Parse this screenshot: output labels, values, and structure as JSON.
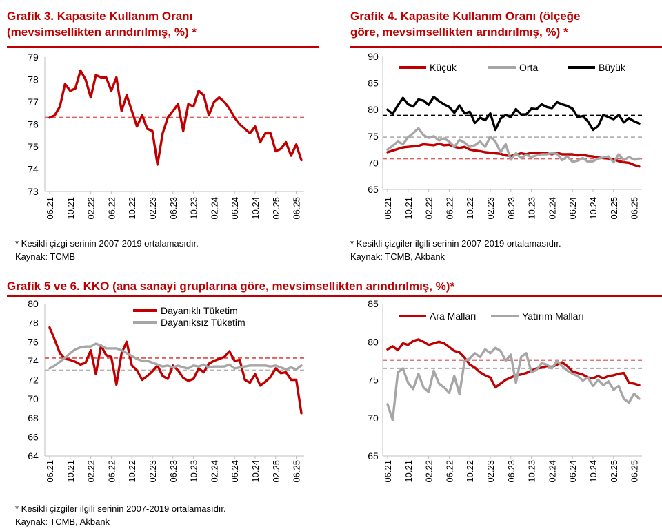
{
  "titles": {
    "g3_line1": "Grafik 3. Kapasite Kullanım Oranı",
    "g3_line2": "(mevsimsellikten arındırılmış, %) *",
    "g4_line1": "Grafik 4. Kapasite Kullanım Oranı (ölçeğe",
    "g4_line2": "göre, mevsimsellikten arındırılmış, %) *",
    "g56": "Grafik 5 ve 6. KKO (ana sanayi gruplarına göre, mevsimsellikten arındırılmış, %)*"
  },
  "notes": {
    "g3_note": "* Kesikli çizgi serinin 2007-2019 ortalamasıdır.",
    "g3_source": "Kaynak: TCMB",
    "g4_note": "* Kesikli çizgiler ilgili serinin 2007-2019 ortalamasıdır.",
    "g4_source": "Kaynak: TCMB, Akbank",
    "g56_note": "* Kesikli çizgiler ilgili serinin 2007-2019 ortalamasıdır.",
    "g56_source": "Kaynak: TCMB, Akbank"
  },
  "colors": {
    "red": "#c00000",
    "gray": "#a6a6a6",
    "black": "#000000",
    "dash_red": "#e06060",
    "dash_gray": "#b3b3b3"
  },
  "chart_data": [
    {
      "id": "g3",
      "type": "line",
      "title": "Grafik 3. Kapasite Kullanım Oranı (mevsimsellikten arındırılmış, %) *",
      "x_tick_labels": [
        "06.21",
        "10.21",
        "02.22",
        "06.22",
        "10.22",
        "02.23",
        "06.23",
        "10.23",
        "02.24",
        "06.24",
        "10.24",
        "02.25",
        "06.25"
      ],
      "ylim": [
        73,
        79
      ],
      "yticks": [
        73,
        74,
        75,
        76,
        77,
        78,
        79
      ],
      "legend": "none",
      "series": [
        {
          "color": "#c00000",
          "values": [
            76.3,
            76.4,
            76.8,
            77.8,
            77.5,
            77.6,
            78.4,
            78.0,
            77.2,
            78.2,
            78.1,
            78.1,
            77.5,
            78.1,
            76.6,
            77.3,
            76.6,
            75.9,
            76.4,
            75.8,
            75.7,
            74.2,
            75.6,
            76.3,
            76.6,
            76.9,
            75.7,
            76.9,
            76.8,
            77.5,
            77.3,
            76.4,
            77.0,
            77.2,
            77.0,
            76.7,
            76.3,
            76.0,
            75.8,
            75.6,
            75.9,
            75.2,
            75.6,
            75.6,
            74.8,
            74.9,
            75.2,
            74.6,
            75.1,
            74.4
          ]
        }
      ],
      "reference_lines": [
        {
          "value": 76.3,
          "color": "#c00000"
        }
      ]
    },
    {
      "id": "g4",
      "type": "line",
      "title": "Grafik 4. Kapasite Kullanım Oranı (ölçeğe göre, mevsimsellikten arındırılmış, %) *",
      "x_tick_labels": [
        "06.21",
        "10.21",
        "02.22",
        "06.22",
        "10.22",
        "02.23",
        "06.23",
        "10.23",
        "02.24",
        "06.24",
        "10.24",
        "02.25",
        "06.25"
      ],
      "ylim": [
        65,
        90
      ],
      "yticks": [
        65,
        70,
        75,
        80,
        85,
        90
      ],
      "legend": "top",
      "series": [
        {
          "name": "Küçük",
          "color": "#c00000",
          "values": [
            72.0,
            72.3,
            72.6,
            72.9,
            73.0,
            73.1,
            73.2,
            73.5,
            73.4,
            73.3,
            73.6,
            73.3,
            73.4,
            73.0,
            72.8,
            73.0,
            72.5,
            72.3,
            72.2,
            72.0,
            71.9,
            71.8,
            71.7,
            71.4,
            71.3,
            71.5,
            71.8,
            71.6,
            71.9,
            71.9,
            71.8,
            71.8,
            71.6,
            71.9,
            71.6,
            71.6,
            71.6,
            71.4,
            71.5,
            71.3,
            71.2,
            71.0,
            70.9,
            70.8,
            70.7,
            70.3,
            70.1,
            70.0,
            69.6,
            69.3
          ]
        },
        {
          "name": "Orta",
          "color": "#a6a6a6",
          "values": [
            72.5,
            73.2,
            74.0,
            73.5,
            74.8,
            75.6,
            76.5,
            75.2,
            74.7,
            75.0,
            74.2,
            74.6,
            74.0,
            73.0,
            74.3,
            73.8,
            73.0,
            73.3,
            74.0,
            73.0,
            74.9,
            74.0,
            72.0,
            73.5,
            70.6,
            71.8,
            70.9,
            71.5,
            71.1,
            71.4,
            71.6,
            71.6,
            71.8,
            71.7,
            70.5,
            71.2,
            70.2,
            70.4,
            70.9,
            70.2,
            70.3,
            70.8,
            71.0,
            71.2,
            70.1,
            71.6,
            70.5,
            71.1,
            70.6,
            70.8
          ]
        },
        {
          "name": "Büyük",
          "color": "#000000",
          "values": [
            80.0,
            79.2,
            80.8,
            82.2,
            81.0,
            80.6,
            81.9,
            81.7,
            80.9,
            82.4,
            81.6,
            81.0,
            80.5,
            79.4,
            80.8,
            79.3,
            79.6,
            77.5,
            78.5,
            78.0,
            79.3,
            76.2,
            78.3,
            79.0,
            78.6,
            80.1,
            79.1,
            79.1,
            80.2,
            80.1,
            81.0,
            80.5,
            80.3,
            81.4,
            81.0,
            80.7,
            80.2,
            78.6,
            78.8,
            77.8,
            76.2,
            76.9,
            79.0,
            78.6,
            78.2,
            79.0,
            77.6,
            78.4,
            77.8,
            77.4
          ]
        }
      ],
      "reference_lines": [
        {
          "value": 78.9,
          "color": "#000000"
        },
        {
          "value": 74.8,
          "color": "#a6a6a6"
        },
        {
          "value": 70.8,
          "color": "#c00000"
        }
      ]
    },
    {
      "id": "g5",
      "type": "line",
      "x_tick_labels": [
        "06.21",
        "10.21",
        "02.22",
        "06.22",
        "10.22",
        "02.23",
        "06.23",
        "10.23",
        "02.24",
        "06.24",
        "10.24",
        "02.25",
        "06.25"
      ],
      "ylim": [
        64,
        80
      ],
      "yticks": [
        64,
        66,
        68,
        70,
        72,
        74,
        76,
        78,
        80
      ],
      "legend": "top-right",
      "series": [
        {
          "name": "Dayanıklı Tüketim",
          "color": "#c00000",
          "values": [
            77.5,
            76.2,
            74.8,
            74.2,
            74.1,
            73.9,
            73.6,
            73.8,
            75.1,
            72.6,
            75.6,
            74.6,
            74.4,
            71.5,
            74.8,
            76.0,
            73.5,
            73.0,
            72.0,
            72.4,
            72.9,
            73.5,
            72.4,
            72.1,
            73.5,
            73.0,
            72.2,
            71.9,
            72.1,
            73.2,
            72.8,
            73.7,
            74.0,
            74.2,
            74.4,
            75.0,
            74.0,
            74.1,
            72.0,
            71.7,
            72.6,
            71.4,
            71.8,
            72.3,
            73.2,
            72.7,
            72.8,
            72.0,
            72.0,
            68.5
          ]
        },
        {
          "name": "Dayanıksız Tüketim",
          "color": "#a6a6a6",
          "values": [
            73.2,
            73.5,
            73.9,
            74.3,
            74.8,
            75.2,
            75.4,
            75.5,
            75.5,
            75.8,
            75.6,
            75.3,
            75.3,
            75.3,
            75.1,
            74.8,
            74.5,
            74.2,
            74.0,
            74.0,
            73.8,
            73.6,
            73.4,
            73.5,
            73.3,
            73.5,
            73.3,
            73.2,
            73.5,
            73.4,
            73.6,
            73.3,
            73.4,
            73.4,
            73.4,
            73.6,
            73.2,
            73.3,
            73.4,
            73.5,
            73.5,
            73.5,
            73.5,
            73.4,
            73.5,
            73.3,
            73.1,
            73.3,
            73.1,
            73.5
          ]
        }
      ],
      "reference_lines": [
        {
          "value": 74.3,
          "color": "#c00000"
        },
        {
          "value": 73.0,
          "color": "#a6a6a6"
        }
      ]
    },
    {
      "id": "g6",
      "type": "line",
      "x_tick_labels": [
        "06.21",
        "10.21",
        "02.22",
        "06.22",
        "10.22",
        "02.23",
        "06.23",
        "10.23",
        "02.24",
        "06.24",
        "10.24",
        "02.25",
        "06.25"
      ],
      "ylim": [
        65,
        85
      ],
      "yticks": [
        65,
        70,
        75,
        80,
        85
      ],
      "legend": "top",
      "series": [
        {
          "name": "Ara Malları",
          "color": "#c00000",
          "values": [
            79.0,
            79.4,
            78.9,
            79.8,
            79.6,
            80.1,
            80.3,
            80.0,
            79.6,
            79.8,
            80.0,
            79.8,
            79.3,
            78.8,
            78.6,
            77.9,
            77.0,
            76.6,
            76.0,
            75.6,
            75.3,
            74.0,
            74.5,
            75.0,
            75.3,
            75.6,
            75.7,
            75.9,
            76.2,
            76.5,
            76.6,
            76.8,
            76.7,
            77.0,
            77.3,
            76.8,
            76.1,
            75.9,
            75.7,
            75.3,
            75.2,
            75.5,
            75.2,
            75.5,
            75.6,
            75.8,
            75.9,
            74.6,
            74.5,
            74.3
          ]
        },
        {
          "name": "Yatırım Malları",
          "color": "#a6a6a6",
          "values": [
            71.8,
            69.7,
            76.0,
            76.5,
            74.6,
            73.8,
            75.8,
            74.0,
            73.4,
            76.2,
            74.5,
            74.0,
            73.3,
            75.5,
            73.1,
            77.5,
            77.8,
            78.5,
            78.0,
            79.0,
            78.5,
            79.2,
            78.8,
            77.5,
            78.3,
            74.6,
            78.0,
            78.5,
            76.0,
            76.3,
            77.2,
            77.0,
            76.5,
            77.5,
            76.8,
            76.2,
            75.8,
            75.5,
            74.9,
            75.3,
            74.2,
            75.0,
            74.3,
            74.8,
            73.7,
            74.2,
            72.5,
            72.0,
            73.2,
            72.5
          ]
        }
      ],
      "reference_lines": [
        {
          "value": 77.6,
          "color": "#c00000"
        },
        {
          "value": 76.5,
          "color": "#a6a6a6"
        }
      ]
    }
  ]
}
